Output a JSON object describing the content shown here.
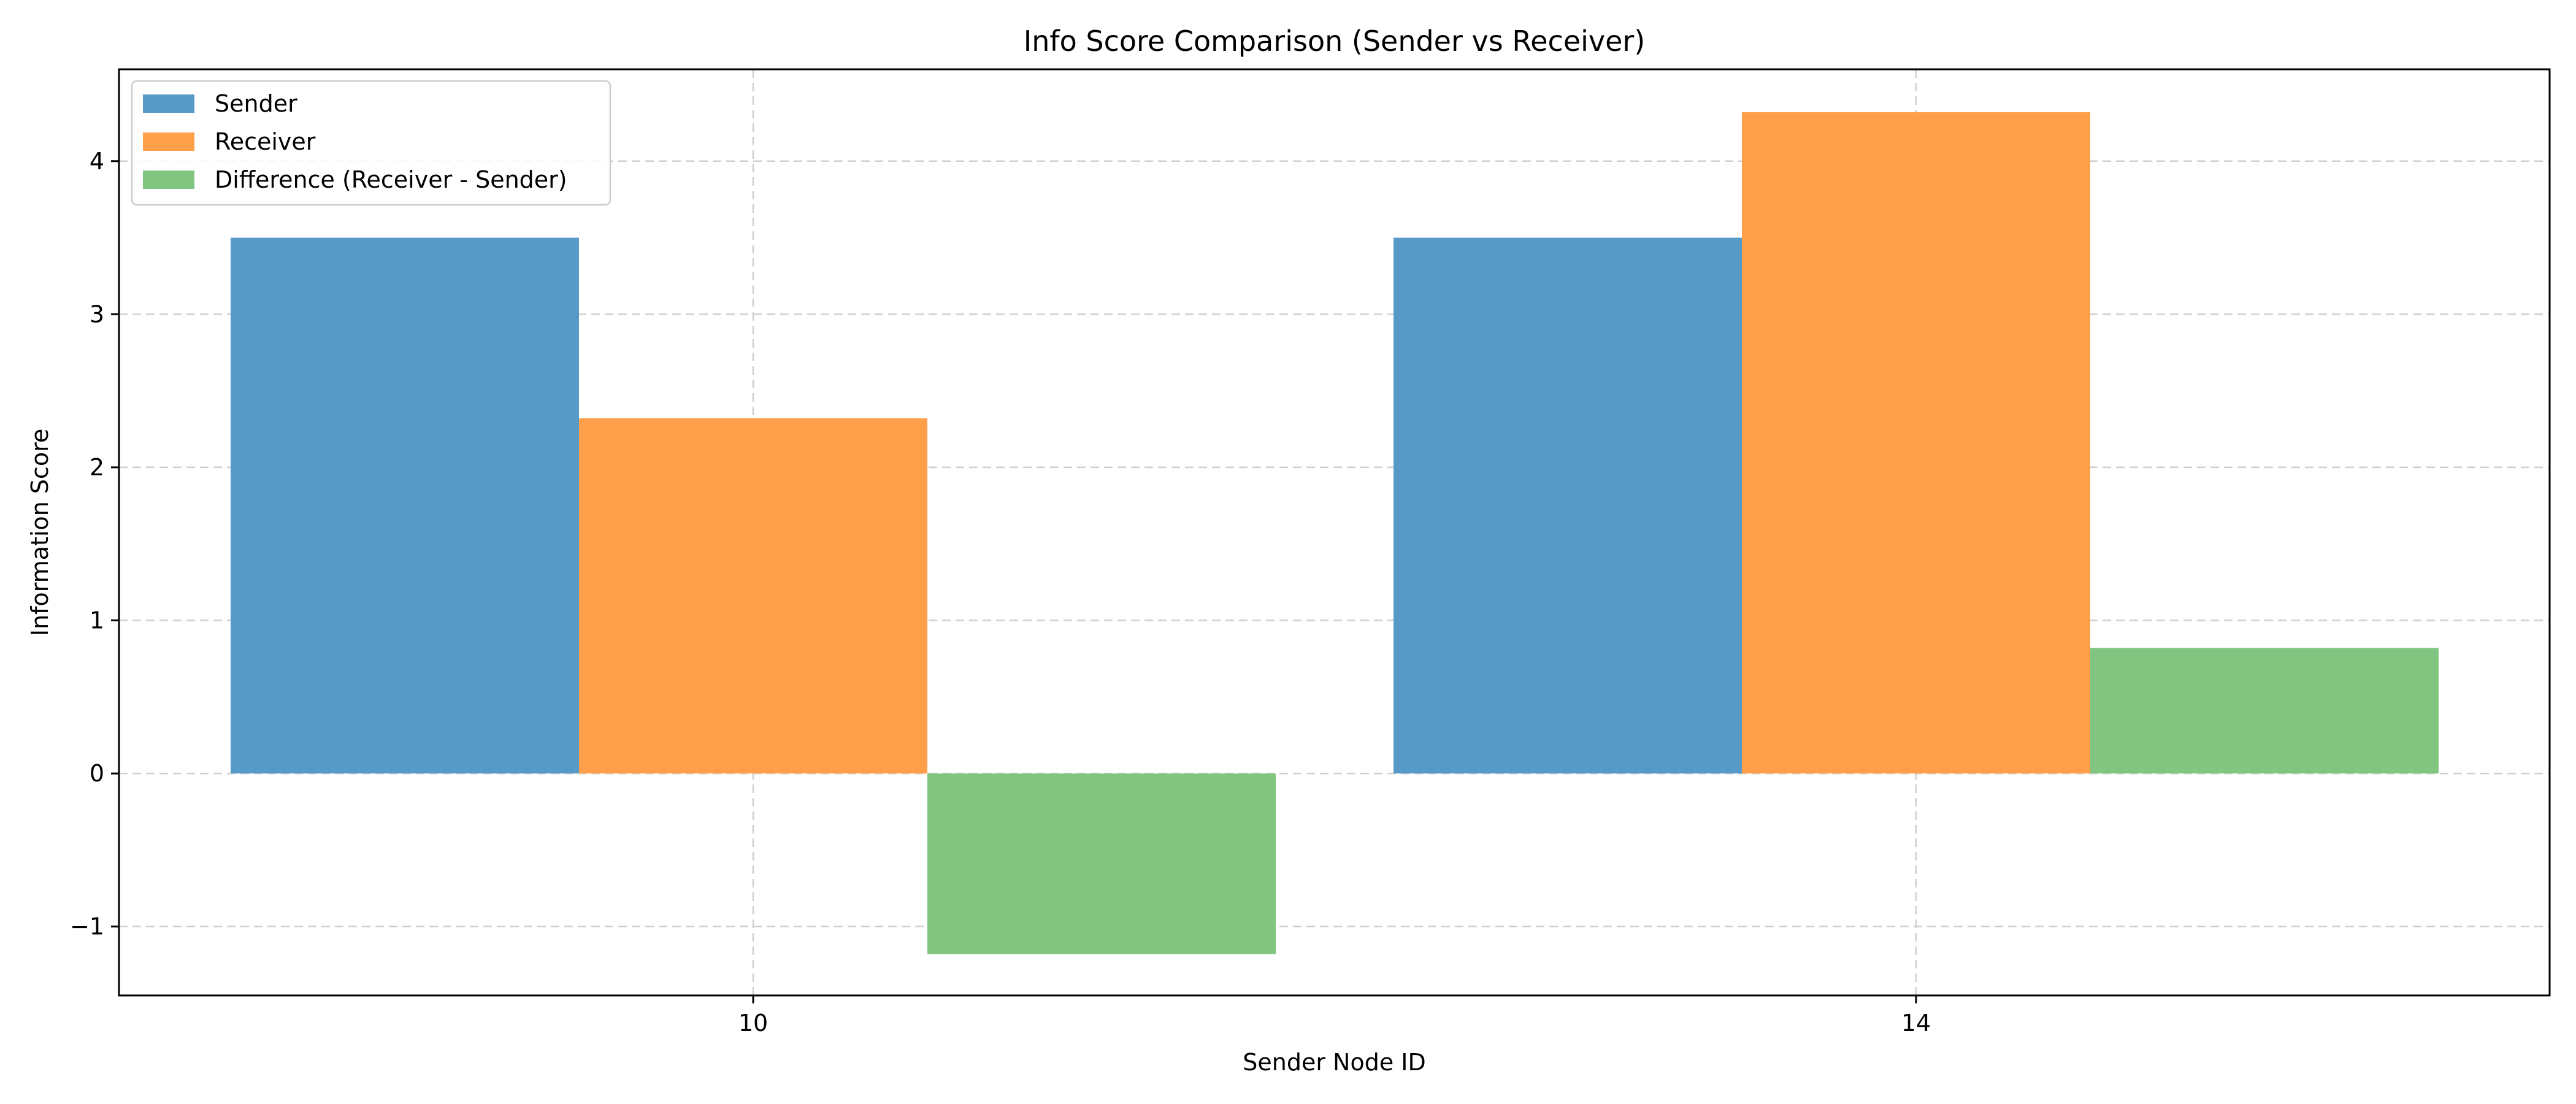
{
  "chart_data": {
    "type": "bar",
    "title": "Info Score Comparison (Sender vs Receiver)",
    "xlabel": "Sender Node ID",
    "ylabel": "Information Score",
    "categories": [
      "10",
      "14"
    ],
    "series": [
      {
        "name": "Sender",
        "values": [
          3.5,
          3.5
        ],
        "color": "#5799c7"
      },
      {
        "name": "Receiver",
        "values": [
          2.32,
          4.32
        ],
        "color": "#ff9f4a"
      },
      {
        "name": "Difference (Receiver - Sender)",
        "values": [
          -1.18,
          0.82
        ],
        "color": "#81c581"
      }
    ],
    "ylim": [
      -1.45,
      4.6
    ],
    "yticks": [
      -1,
      0,
      1,
      2,
      3,
      4
    ],
    "ytick_labels": [
      "−1",
      "0",
      "1",
      "2",
      "3",
      "4"
    ],
    "grid": true,
    "legend_position": "upper-left"
  }
}
